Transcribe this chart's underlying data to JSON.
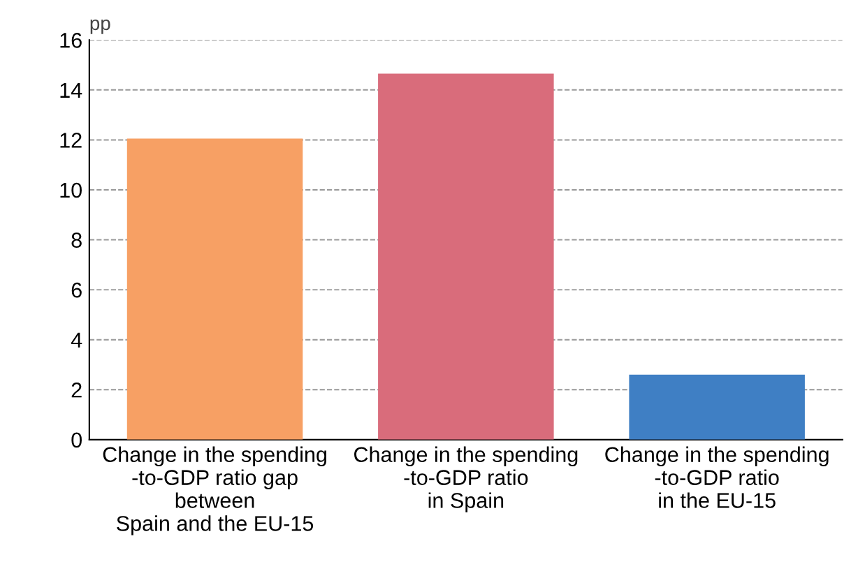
{
  "chart_data": {
    "type": "bar",
    "ylabel": "pp",
    "categories": [
      "Change in the spending\n-to-GDP ratio gap\nbetween\nSpain and the EU-15",
      "Change in the spending\n-to-GDP ratio\nin Spain",
      "Change in the spending\n-to-GDP ratio\nin the EU-15"
    ],
    "values": [
      12.05,
      14.65,
      2.6
    ],
    "colors": [
      "#f7a064",
      "#d96c7b",
      "#3f7fc4"
    ],
    "ylim": [
      0,
      16
    ],
    "yticks": [
      0,
      2,
      4,
      6,
      8,
      10,
      12,
      14,
      16
    ],
    "grid": "y",
    "line_style": "dashed"
  }
}
